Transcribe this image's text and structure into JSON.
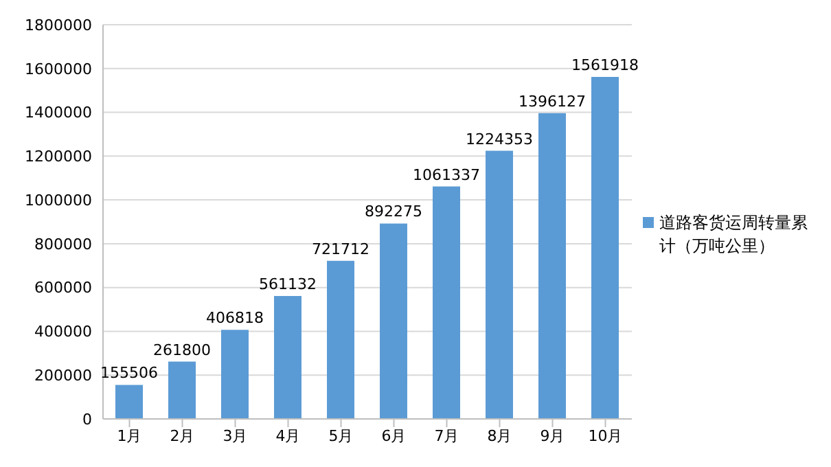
{
  "chart_data": {
    "type": "bar",
    "categories": [
      "1月",
      "2月",
      "3月",
      "4月",
      "5月",
      "6月",
      "7月",
      "8月",
      "9月",
      "10月"
    ],
    "series": [
      {
        "name": "道路客货运周转量累计（万吨公里）",
        "color": "#5b9bd5",
        "values": [
          155506,
          261800,
          406818,
          561132,
          721712,
          892275,
          1061337,
          1224353,
          1396127,
          1561918
        ]
      }
    ],
    "ylim": [
      0,
      1800000
    ],
    "yticks": [
      0,
      200000,
      400000,
      600000,
      800000,
      1000000,
      1200000,
      1400000,
      1600000,
      1800000
    ],
    "grid": "y",
    "legend": "right",
    "data_labels": true
  }
}
